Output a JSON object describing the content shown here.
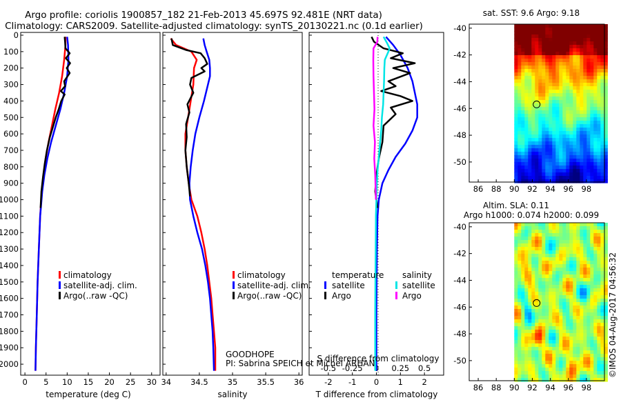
{
  "header": {
    "line1": "Argo profile: coriolis 1900857_182 21-Feb-2013 45.697S 92.481E (NRT data)",
    "line2": "Climatology: CARS2009. Satellite-adjusted climatology: synTS_20130221.nc (0.1d earlier)"
  },
  "colors": {
    "climatology": "#ff0000",
    "satellite": "#0000ff",
    "argo": "#000000",
    "sat_salinity": "#00e5e5",
    "argo_salinity": "#ff00ff"
  },
  "chart_data": [
    {
      "id": "temperature",
      "type": "line",
      "xlabel": "temperature (deg C)",
      "ylabel": "pressure",
      "xlim": [
        -1,
        32
      ],
      "ylim": [
        2050,
        0
      ],
      "xticks": [
        0,
        5,
        10,
        15,
        20,
        25,
        30
      ],
      "yticks": [
        0,
        100,
        200,
        300,
        400,
        500,
        600,
        700,
        800,
        900,
        1000,
        1100,
        1200,
        1300,
        1400,
        1500,
        1600,
        1700,
        1800,
        1900,
        2000
      ],
      "legend": [
        "climatology",
        "satellite-adj. clim.",
        "Argo(..raw -QC)"
      ],
      "series": [
        {
          "name": "climatology",
          "color": "#ff0000",
          "points": [
            [
              9.6,
              10
            ],
            [
              9.6,
              60
            ],
            [
              9.3,
              150
            ],
            [
              8.8,
              250
            ],
            [
              8.1,
              350
            ],
            [
              7.2,
              450
            ],
            [
              6.4,
              550
            ],
            [
              5.6,
              650
            ],
            [
              4.9,
              750
            ],
            [
              4.4,
              850
            ],
            [
              4.0,
              950
            ],
            [
              3.6,
              1100
            ],
            [
              3.3,
              1300
            ],
            [
              3.0,
              1500
            ],
            [
              2.8,
              1700
            ],
            [
              2.6,
              1900
            ],
            [
              2.5,
              2040
            ]
          ]
        },
        {
          "name": "satellite-adj. clim.",
          "color": "#0000ff",
          "points": [
            [
              10.0,
              10
            ],
            [
              10.2,
              60
            ],
            [
              10.3,
              150
            ],
            [
              10.0,
              250
            ],
            [
              9.3,
              350
            ],
            [
              8.4,
              450
            ],
            [
              7.3,
              550
            ],
            [
              6.2,
              650
            ],
            [
              5.3,
              750
            ],
            [
              4.6,
              850
            ],
            [
              4.1,
              950
            ],
            [
              3.6,
              1100
            ],
            [
              3.3,
              1300
            ],
            [
              3.0,
              1500
            ],
            [
              2.8,
              1700
            ],
            [
              2.6,
              1900
            ],
            [
              2.5,
              2040
            ]
          ]
        },
        {
          "name": "Argo(..raw -QC)",
          "color": "#000000",
          "points": [
            [
              9.4,
              10
            ],
            [
              9.5,
              40
            ],
            [
              9.6,
              80
            ],
            [
              10.6,
              110
            ],
            [
              9.7,
              140
            ],
            [
              10.7,
              170
            ],
            [
              9.9,
              200
            ],
            [
              10.6,
              230
            ],
            [
              9.3,
              280
            ],
            [
              9.5,
              310
            ],
            [
              8.5,
              340
            ],
            [
              9.4,
              360
            ],
            [
              8.6,
              400
            ],
            [
              8.0,
              450
            ],
            [
              7.3,
              500
            ],
            [
              6.6,
              560
            ],
            [
              5.9,
              620
            ],
            [
              5.2,
              700
            ],
            [
              4.7,
              780
            ],
            [
              4.3,
              860
            ],
            [
              3.9,
              950
            ],
            [
              3.7,
              1050
            ]
          ]
        }
      ]
    },
    {
      "id": "salinity",
      "type": "line",
      "xlabel": "salinity",
      "ylabel": "pressure",
      "xlim": [
        33.95,
        36.05
      ],
      "ylim": [
        2050,
        0
      ],
      "xticks": [
        34,
        34.5,
        35,
        35.5,
        36
      ],
      "legend": [
        "climatology",
        "satellite-adj. clim.",
        "Argo(..raw -QC)"
      ],
      "series": [
        {
          "name": "climatology",
          "color": "#ff0000",
          "points": [
            [
              34.07,
              20
            ],
            [
              34.15,
              60
            ],
            [
              34.38,
              100
            ],
            [
              34.46,
              150
            ],
            [
              34.42,
              200
            ],
            [
              34.41,
              300
            ],
            [
              34.37,
              400
            ],
            [
              34.33,
              500
            ],
            [
              34.29,
              600
            ],
            [
              34.29,
              700
            ],
            [
              34.31,
              800
            ],
            [
              34.34,
              900
            ],
            [
              34.38,
              1000
            ],
            [
              34.47,
              1100
            ],
            [
              34.53,
              1200
            ],
            [
              34.58,
              1300
            ],
            [
              34.62,
              1400
            ],
            [
              34.65,
              1500
            ],
            [
              34.68,
              1600
            ],
            [
              34.7,
              1700
            ],
            [
              34.72,
              1800
            ],
            [
              34.74,
              1900
            ],
            [
              34.74,
              2040
            ]
          ]
        },
        {
          "name": "satellite-adj. clim.",
          "color": "#0000ff",
          "points": [
            [
              34.56,
              20
            ],
            [
              34.58,
              60
            ],
            [
              34.61,
              100
            ],
            [
              34.65,
              150
            ],
            [
              34.66,
              200
            ],
            [
              34.66,
              250
            ],
            [
              34.63,
              300
            ],
            [
              34.57,
              400
            ],
            [
              34.5,
              500
            ],
            [
              34.44,
              600
            ],
            [
              34.4,
              700
            ],
            [
              34.37,
              800
            ],
            [
              34.35,
              900
            ],
            [
              34.36,
              1000
            ],
            [
              34.41,
              1100
            ],
            [
              34.47,
              1200
            ],
            [
              34.54,
              1300
            ],
            [
              34.59,
              1400
            ],
            [
              34.63,
              1500
            ],
            [
              34.66,
              1600
            ],
            [
              34.68,
              1700
            ],
            [
              34.7,
              1800
            ],
            [
              34.71,
              1900
            ],
            [
              34.72,
              2040
            ]
          ]
        },
        {
          "name": "Argo(..raw -QC)",
          "color": "#000000",
          "points": [
            [
              34.08,
              20
            ],
            [
              34.1,
              60
            ],
            [
              34.3,
              90
            ],
            [
              34.52,
              110
            ],
            [
              34.58,
              140
            ],
            [
              34.62,
              175
            ],
            [
              34.53,
              200
            ],
            [
              34.58,
              220
            ],
            [
              34.38,
              260
            ],
            [
              34.36,
              300
            ],
            [
              34.41,
              350
            ],
            [
              34.32,
              420
            ],
            [
              34.35,
              470
            ],
            [
              34.3,
              540
            ],
            [
              34.31,
              620
            ],
            [
              34.29,
              700
            ],
            [
              34.31,
              800
            ],
            [
              34.34,
              900
            ],
            [
              34.36,
              980
            ]
          ]
        }
      ]
    },
    {
      "id": "difference",
      "type": "line",
      "xlabel": "T difference from climatology",
      "top_xlabel": "S difference from climatology",
      "xlim": [
        -2.8,
        2.8
      ],
      "ylim": [
        2050,
        0
      ],
      "xticks": [
        -2,
        -1,
        0,
        1,
        2
      ],
      "top_xticks": [
        "-0.5",
        "-0.25",
        "0",
        "0.25",
        "0.5"
      ],
      "legend": {
        "temperature_header": "temperature",
        "salinity_header": "salinity",
        "temperature_items": [
          "satellite",
          "Argo"
        ],
        "salinity_items": [
          "satellite",
          "Argo"
        ]
      },
      "series": [
        {
          "name": "temperature satellite",
          "color": "#0000ff",
          "points": [
            [
              0.4,
              10
            ],
            [
              0.7,
              60
            ],
            [
              1.0,
              120
            ],
            [
              1.3,
              200
            ],
            [
              1.5,
              280
            ],
            [
              1.6,
              350
            ],
            [
              1.7,
              420
            ],
            [
              1.7,
              500
            ],
            [
              1.5,
              580
            ],
            [
              1.2,
              660
            ],
            [
              0.8,
              740
            ],
            [
              0.5,
              820
            ],
            [
              0.25,
              900
            ],
            [
              0.1,
              1000
            ],
            [
              0.05,
              1100
            ],
            [
              0.02,
              1300
            ],
            [
              0.01,
              1500
            ],
            [
              0.0,
              1700
            ],
            [
              0.0,
              2040
            ]
          ]
        },
        {
          "name": "temperature Argo",
          "color": "#000000",
          "points": [
            [
              -0.2,
              10
            ],
            [
              -0.1,
              40
            ],
            [
              0.3,
              80
            ],
            [
              1.1,
              110
            ],
            [
              0.6,
              140
            ],
            [
              1.6,
              170
            ],
            [
              0.7,
              200
            ],
            [
              1.4,
              230
            ],
            [
              0.5,
              280
            ],
            [
              0.8,
              310
            ],
            [
              0.2,
              340
            ],
            [
              1.0,
              370
            ],
            [
              1.5,
              400
            ],
            [
              0.6,
              440
            ],
            [
              0.8,
              480
            ],
            [
              0.3,
              550
            ],
            [
              0.25,
              650
            ],
            [
              0.1,
              750
            ],
            [
              0.0,
              850
            ],
            [
              -0.05,
              950
            ],
            [
              0.05,
              1050
            ]
          ]
        },
        {
          "name": "salinity satellite",
          "color": "#00e5e5",
          "points": [
            [
              0.3,
              10
            ],
            [
              0.45,
              50
            ],
            [
              0.55,
              80
            ],
            [
              0.5,
              100
            ],
            [
              0.35,
              150
            ],
            [
              0.33,
              200
            ],
            [
              0.32,
              280
            ],
            [
              0.3,
              350
            ],
            [
              0.28,
              420
            ],
            [
              0.23,
              500
            ],
            [
              0.2,
              580
            ],
            [
              0.15,
              660
            ],
            [
              0.1,
              740
            ],
            [
              0.05,
              820
            ],
            [
              0.02,
              900
            ],
            [
              0.0,
              1000
            ],
            [
              -0.02,
              1100
            ],
            [
              -0.03,
              1300
            ],
            [
              -0.04,
              1500
            ],
            [
              -0.05,
              1700
            ],
            [
              -0.05,
              1900
            ],
            [
              -0.05,
              2040
            ]
          ]
        },
        {
          "name": "salinity Argo",
          "color": "#ff00ff",
          "points": [
            [
              0.05,
              10
            ],
            [
              0.04,
              40
            ],
            [
              -0.12,
              80
            ],
            [
              -0.13,
              150
            ],
            [
              -0.12,
              250
            ],
            [
              -0.1,
              350
            ],
            [
              -0.08,
              450
            ],
            [
              -0.12,
              550
            ],
            [
              -0.06,
              650
            ],
            [
              -0.09,
              750
            ],
            [
              -0.05,
              850
            ],
            [
              -0.03,
              950
            ],
            [
              -0.02,
              1000
            ]
          ]
        }
      ]
    },
    {
      "id": "sst_map",
      "type": "heatmap",
      "title": "sat. SST: 9.6 Argo: 9.18",
      "xticks": [
        "86",
        "88",
        "90",
        "92",
        "94",
        "96",
        "98"
      ],
      "yticks": [
        "-40",
        "-42",
        "-44",
        "-46",
        "-48",
        "-50"
      ],
      "lon_range": [
        85,
        100
      ],
      "lat_range": [
        -51.5,
        -39.7
      ],
      "data_lon_start": 90,
      "marker": {
        "lon": 92.48,
        "lat": -45.7
      }
    },
    {
      "id": "sla_map",
      "type": "heatmap",
      "title1": "Altim. SLA: 0.11",
      "title2": "Argo h1000: 0.074 h2000: 0.099",
      "xticks": [
        "86",
        "88",
        "90",
        "92",
        "94",
        "96",
        "98"
      ],
      "yticks": [
        "-40",
        "-42",
        "-44",
        "-46",
        "-48",
        "-50"
      ],
      "lon_range": [
        85,
        100
      ],
      "lat_range": [
        -51.5,
        -39.7
      ],
      "data_lon_start": 90,
      "marker": {
        "lon": 92.48,
        "lat": -45.7
      }
    }
  ],
  "annotations": {
    "program": "GOODHOPE",
    "pi": "PI: Sabrina SPEICH et Michel ARHAN",
    "footer": "©IMOS 04-Aug-2017 04:56:32"
  }
}
